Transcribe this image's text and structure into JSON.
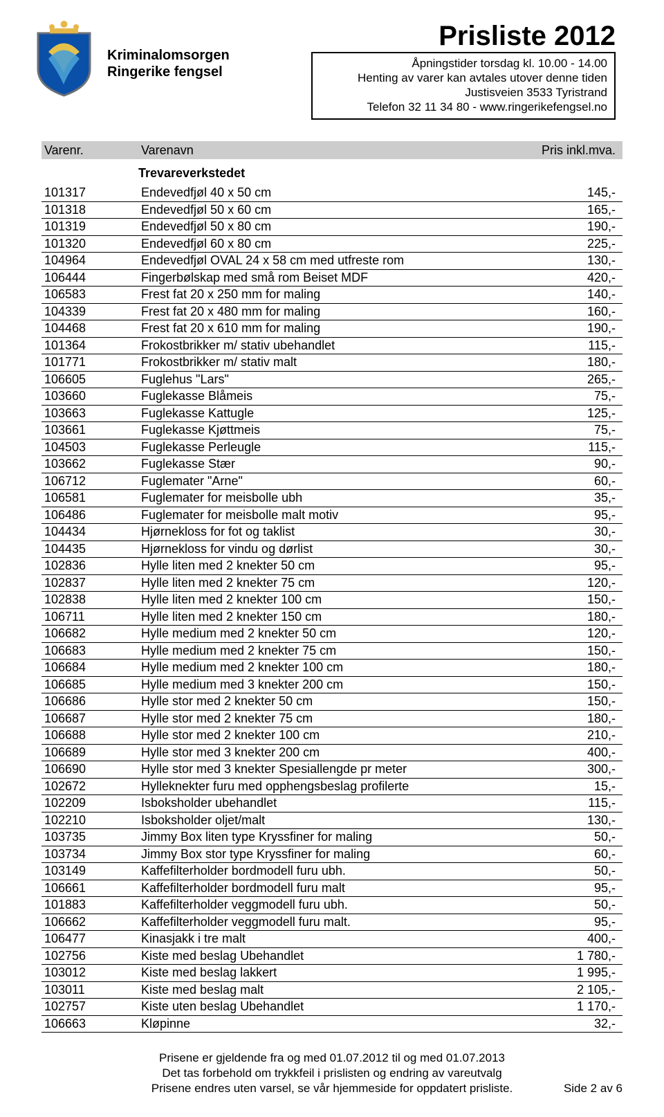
{
  "header": {
    "org_line1": "Kriminalomsorgen",
    "org_line2": "Ringerike fengsel",
    "title": "Prisliste 2012",
    "info": {
      "l1": "Åpningstider torsdag kl. 10.00 - 14.00",
      "l2": "Henting av varer kan avtales utover denne tiden",
      "l3": "Justisveien 3533 Tyristrand",
      "l4": "Telefon 32 11 34 80  -  www.ringerikefengsel.no"
    },
    "logo": {
      "shield_fill": "#0a4fa8",
      "shield_stroke": "#6b7076",
      "swirl_top": "#e5c24b",
      "swirl_bottom": "#4aa0d4",
      "crown_fill": "#e6b84a"
    }
  },
  "columns": {
    "c1": "Varenr.",
    "c2": "Varenavn",
    "c3": "Pris inkl.mva."
  },
  "section": "Trevareverkstedet",
  "rows": [
    {
      "id": "101317",
      "name": "Endevedfjøl 40 x 50 cm",
      "price": "145,-"
    },
    {
      "id": "101318",
      "name": "Endevedfjøl 50 x 60 cm",
      "price": "165,-"
    },
    {
      "id": "101319",
      "name": "Endevedfjøl 50 x 80 cm",
      "price": "190,-"
    },
    {
      "id": "101320",
      "name": "Endevedfjøl 60 x 80 cm",
      "price": "225,-"
    },
    {
      "id": "104964",
      "name": "Endevedfjøl OVAL 24 x 58 cm  med utfreste rom",
      "price": "130,-"
    },
    {
      "id": "106444",
      "name": "Fingerbølskap med små rom Beiset MDF",
      "price": "420,-"
    },
    {
      "id": "106583",
      "name": "Frest fat  20 x 250 mm for maling",
      "price": "140,-"
    },
    {
      "id": "104339",
      "name": "Frest fat  20 x 480 mm for maling",
      "price": "160,-"
    },
    {
      "id": "104468",
      "name": "Frest fat  20 x 610 mm for maling",
      "price": "190,-"
    },
    {
      "id": "101364",
      "name": "Frokostbrikker m/ stativ  ubehandlet",
      "price": "115,-"
    },
    {
      "id": "101771",
      "name": "Frokostbrikker m/ stativ malt",
      "price": "180,-"
    },
    {
      "id": "106605",
      "name": "Fuglehus \"Lars\"",
      "price": "265,-"
    },
    {
      "id": "103660",
      "name": "Fuglekasse Blåmeis",
      "price": "75,-"
    },
    {
      "id": "103663",
      "name": "Fuglekasse Kattugle",
      "price": "125,-"
    },
    {
      "id": "103661",
      "name": "Fuglekasse Kjøttmeis",
      "price": "75,-"
    },
    {
      "id": "104503",
      "name": "Fuglekasse Perleugle",
      "price": "115,-"
    },
    {
      "id": "103662",
      "name": "Fuglekasse Stær",
      "price": "90,-"
    },
    {
      "id": "106712",
      "name": "Fuglemater \"Arne\"",
      "price": "60,-"
    },
    {
      "id": "106581",
      "name": "Fuglemater for meisbolle  ubh",
      "price": "35,-"
    },
    {
      "id": "106486",
      "name": "Fuglemater for meisbolle malt motiv",
      "price": "95,-"
    },
    {
      "id": "104434",
      "name": "Hjørnekloss for fot og taklist",
      "price": "30,-"
    },
    {
      "id": "104435",
      "name": "Hjørnekloss for vindu og dørlist",
      "price": "30,-"
    },
    {
      "id": "102836",
      "name": "Hylle liten med 2 knekter  50 cm",
      "price": "95,-"
    },
    {
      "id": "102837",
      "name": "Hylle liten med 2 knekter  75 cm",
      "price": "120,-"
    },
    {
      "id": "102838",
      "name": "Hylle liten med 2 knekter 100 cm",
      "price": "150,-"
    },
    {
      "id": "106711",
      "name": "Hylle liten med 2 knekter 150 cm",
      "price": "180,-"
    },
    {
      "id": "106682",
      "name": "Hylle medium med 2 knekter  50 cm",
      "price": "120,-"
    },
    {
      "id": "106683",
      "name": "Hylle medium med 2 knekter  75 cm",
      "price": "150,-"
    },
    {
      "id": "106684",
      "name": "Hylle medium med 2 knekter 100 cm",
      "price": "180,-"
    },
    {
      "id": "106685",
      "name": "Hylle medium med 3 knekter 200 cm",
      "price": "150,-"
    },
    {
      "id": "106686",
      "name": "Hylle stor med 2 knekter  50 cm",
      "price": "150,-"
    },
    {
      "id": "106687",
      "name": "Hylle stor med 2 knekter  75 cm",
      "price": "180,-"
    },
    {
      "id": "106688",
      "name": "Hylle stor med 2 knekter 100 cm",
      "price": "210,-"
    },
    {
      "id": "106689",
      "name": "Hylle stor med 3 knekter 200 cm",
      "price": "400,-"
    },
    {
      "id": "106690",
      "name": "Hylle stor med 3 knekter Spesiallengde pr meter",
      "price": "300,-"
    },
    {
      "id": "102672",
      "name": "Hylleknekter furu med opphengsbeslag profilerte",
      "price": "15,-"
    },
    {
      "id": "102209",
      "name": "Isboksholder ubehandlet",
      "price": "115,-"
    },
    {
      "id": "102210",
      "name": "Isboksholder oljet/malt",
      "price": "130,-"
    },
    {
      "id": "103735",
      "name": "Jimmy Box liten type  Kryssfiner for maling",
      "price": "50,-"
    },
    {
      "id": "103734",
      "name": "Jimmy Box stor type  Kryssfiner for maling",
      "price": "60,-"
    },
    {
      "id": "103149",
      "name": "Kaffefilterholder bordmodell furu  ubh.",
      "price": "50,-"
    },
    {
      "id": "106661",
      "name": "Kaffefilterholder bordmodell furu malt",
      "price": "95,-"
    },
    {
      "id": "101883",
      "name": "Kaffefilterholder veggmodell furu  ubh.",
      "price": "50,-"
    },
    {
      "id": "106662",
      "name": "Kaffefilterholder veggmodell furu malt.",
      "price": "95,-"
    },
    {
      "id": "106477",
      "name": "Kinasjakk i tre malt",
      "price": "400,-"
    },
    {
      "id": "102756",
      "name": "Kiste med beslag  Ubehandlet",
      "price": "1 780,-"
    },
    {
      "id": "103012",
      "name": "Kiste med beslag lakkert",
      "price": "1 995,-"
    },
    {
      "id": "103011",
      "name": "Kiste med beslag malt",
      "price": "2 105,-"
    },
    {
      "id": "102757",
      "name": "Kiste uten beslag  Ubehandlet",
      "price": "1 170,-"
    },
    {
      "id": "106663",
      "name": "Kløpinne",
      "price": "32,-"
    }
  ],
  "footer": {
    "l1": "Prisene er gjeldende fra og med 01.07.2012 til og med 01.07.2013",
    "l2": "Det tas forbehold om trykkfeil i prislisten og endring av vareutvalg",
    "l3": "Prisene endres uten varsel, se vår hjemmeside for oppdatert prisliste.",
    "pagenum": "Side 2  av  6"
  }
}
